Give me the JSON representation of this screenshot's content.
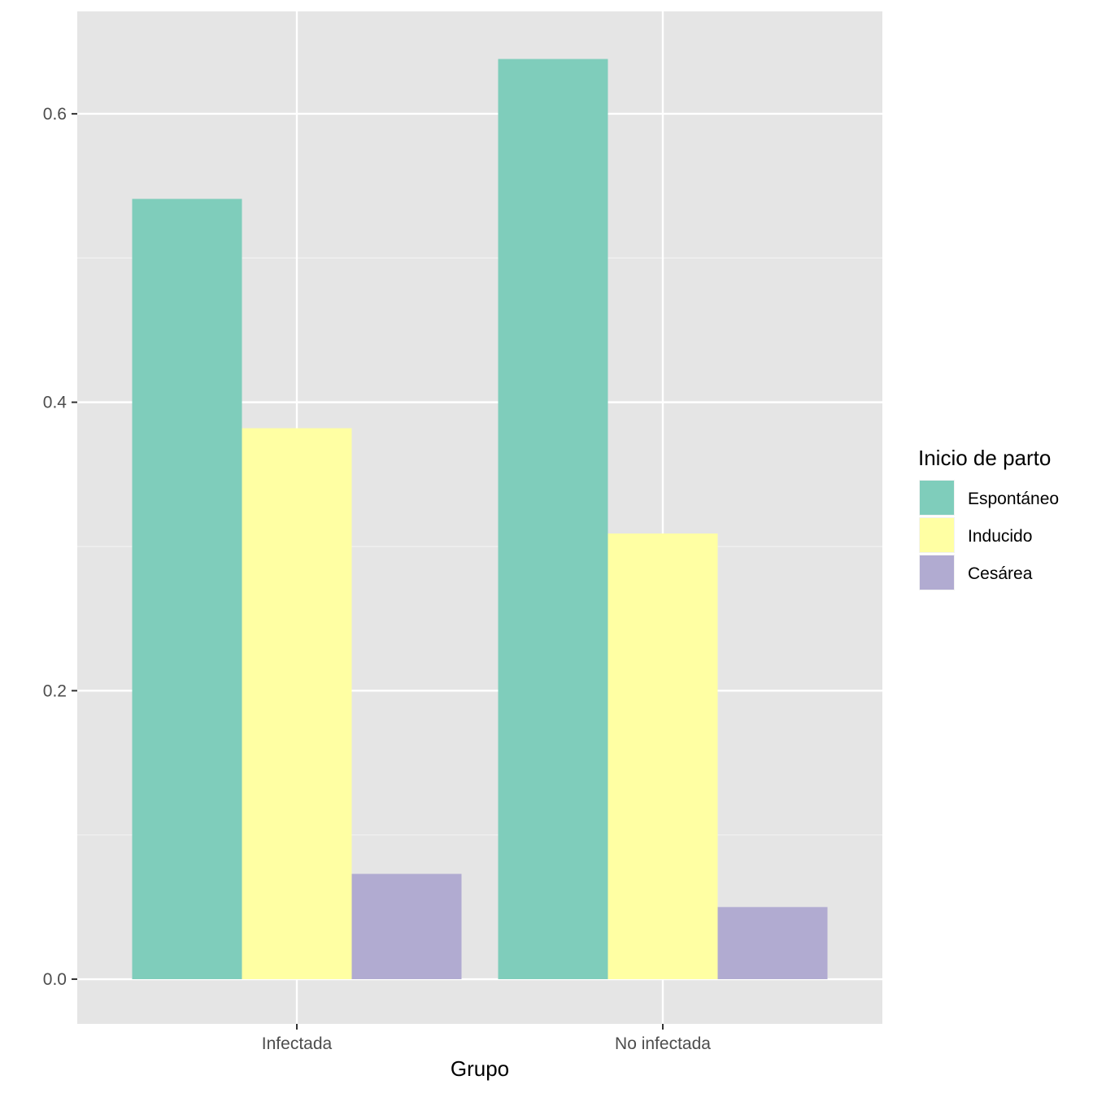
{
  "chart_data": {
    "type": "bar",
    "categories": [
      "Infectada",
      "No infectada"
    ],
    "series": [
      {
        "name": "Espontáneo",
        "color": "#7FCDBB",
        "values": [
          0.541,
          0.638
        ]
      },
      {
        "name": "Inducido",
        "color": "#FFFFA3",
        "values": [
          0.382,
          0.309
        ]
      },
      {
        "name": "Cesárea",
        "color": "#B1ABD1",
        "values": [
          0.073,
          0.05
        ]
      }
    ],
    "xlabel": "Grupo",
    "ylabel": "",
    "ylim": [
      -0.031,
      0.671
    ],
    "yticks": [
      0.0,
      0.2,
      0.4,
      0.6
    ],
    "ytick_labels": [
      "0.0",
      "0.2",
      "0.4",
      "0.6"
    ],
    "legend": {
      "title": "Inicio de parto",
      "placement": "right"
    },
    "grid": true,
    "panel_background": "#E5E5E5"
  }
}
